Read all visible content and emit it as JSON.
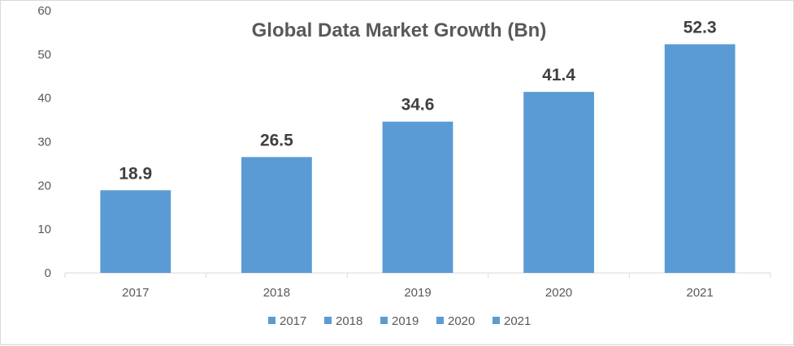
{
  "chart_data": {
    "type": "bar",
    "title": "Global Data Market Growth (Bn)",
    "categories": [
      "2017",
      "2018",
      "2019",
      "2020",
      "2021"
    ],
    "values": [
      18.9,
      26.5,
      34.6,
      41.4,
      52.3
    ],
    "data_labels": [
      "18.9",
      "26.5",
      "34.6",
      "41.4",
      "52.3"
    ],
    "ylim": [
      0,
      60
    ],
    "yticks": [
      0,
      10,
      20,
      30,
      40,
      50,
      60
    ],
    "grid": false,
    "legend_position": "bottom",
    "legend": [
      "2017",
      "2018",
      "2019",
      "2020",
      "2021"
    ],
    "bar_color": "#5b9bd5",
    "xlabel": "",
    "ylabel": ""
  }
}
